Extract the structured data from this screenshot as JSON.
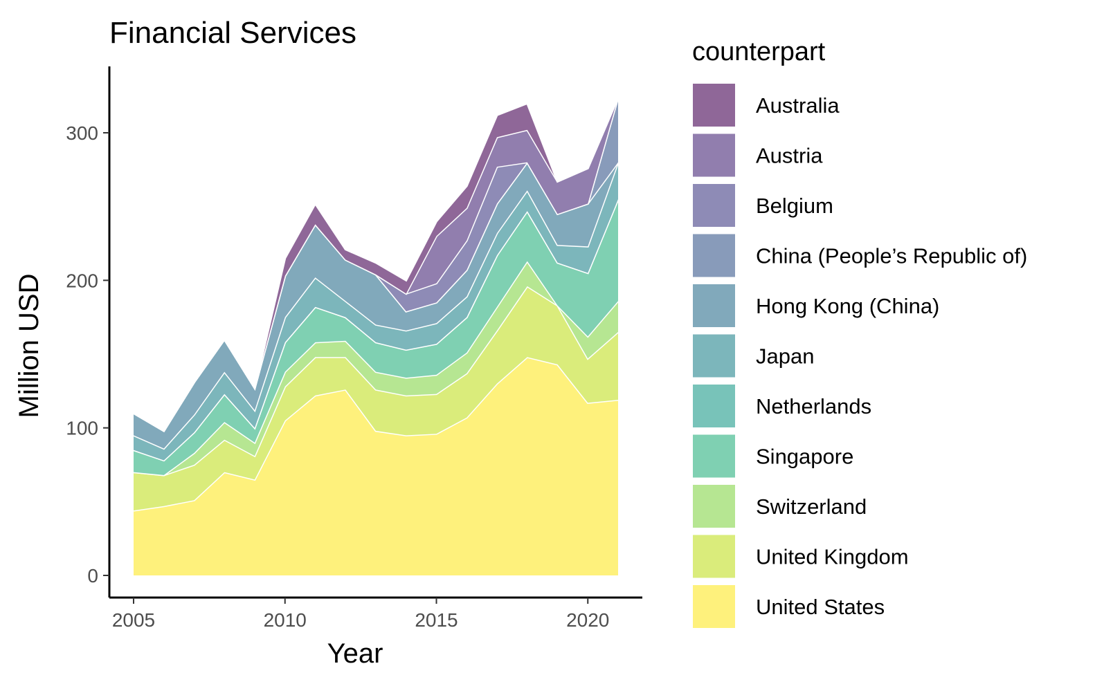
{
  "chart_data": {
    "type": "area",
    "stacked": true,
    "title": "Financial Services",
    "xlabel": "Year",
    "ylabel": "Million USD",
    "xlim": [
      2004.2,
      2021.8
    ],
    "ylim": [
      -15,
      345
    ],
    "xticks": [
      2005,
      2010,
      2015,
      2020
    ],
    "yticks": [
      0,
      100,
      200,
      300
    ],
    "grid": false,
    "legend": {
      "title": "counterpart",
      "position": "right"
    },
    "x": [
      2005,
      2006,
      2007,
      2008,
      2009,
      2010,
      2011,
      2012,
      2013,
      2014,
      2015,
      2016,
      2017,
      2018,
      2019,
      2020,
      2021
    ],
    "series": [
      {
        "name": "United States",
        "color": "#FDE725",
        "values": [
          44,
          47,
          51,
          70,
          65,
          105,
          122,
          126,
          98,
          95,
          96,
          107,
          130,
          148,
          143,
          117,
          119
        ]
      },
      {
        "name": "United Kingdom",
        "color": "#C2DF23",
        "values": [
          26,
          21,
          24,
          22,
          16,
          23,
          26,
          22,
          28,
          27,
          27,
          30,
          36,
          48,
          40,
          30,
          46
        ]
      },
      {
        "name": "Switzerland",
        "color": "#86D549",
        "values": [
          0,
          0,
          8,
          12,
          9,
          10,
          10,
          11,
          12,
          12,
          13,
          14,
          16,
          17,
          0,
          15,
          21
        ]
      },
      {
        "name": "Singapore",
        "color": "#2AB07F",
        "values": [
          15,
          10,
          14,
          19,
          10,
          20,
          24,
          16,
          20,
          19,
          21,
          24,
          35,
          34,
          29,
          43,
          69
        ]
      },
      {
        "name": "Netherlands",
        "color": "#1E9B8A",
        "values": [
          0,
          0,
          0,
          0,
          0,
          0,
          0,
          0,
          0,
          0,
          0,
          0,
          0,
          0,
          0,
          0,
          0
        ]
      },
      {
        "name": "Japan",
        "color": "#25858E",
        "values": [
          10,
          8,
          12,
          15,
          12,
          17,
          20,
          11,
          12,
          13,
          14,
          14,
          15,
          14,
          12,
          18,
          25
        ]
      },
      {
        "name": "Hong Kong (China)",
        "color": "#2D708E",
        "values": [
          15,
          12,
          22,
          22,
          15,
          28,
          36,
          28,
          34,
          13,
          14,
          18,
          20,
          19,
          21,
          29,
          0
        ]
      },
      {
        "name": "China (People’s Republic of)",
        "color": "#38598C",
        "values": [
          0,
          0,
          0,
          0,
          0,
          0,
          0,
          0,
          0,
          0,
          0,
          0,
          0,
          0,
          0,
          0,
          44
        ]
      },
      {
        "name": "Belgium",
        "color": "#433E85",
        "values": [
          0,
          0,
          0,
          0,
          0,
          0,
          0,
          0,
          0,
          12,
          13,
          20,
          25,
          0,
          0,
          0,
          0
        ]
      },
      {
        "name": "Austria",
        "color": "#482878",
        "values": [
          0,
          0,
          0,
          0,
          0,
          0,
          0,
          0,
          0,
          0,
          32,
          22,
          20,
          22,
          22,
          24,
          0
        ]
      },
      {
        "name": "Australia",
        "color": "#440154",
        "values": [
          0,
          0,
          0,
          0,
          0,
          12,
          14,
          7,
          8,
          9,
          10,
          15,
          15,
          18,
          0,
          0,
          0
        ]
      }
    ]
  }
}
